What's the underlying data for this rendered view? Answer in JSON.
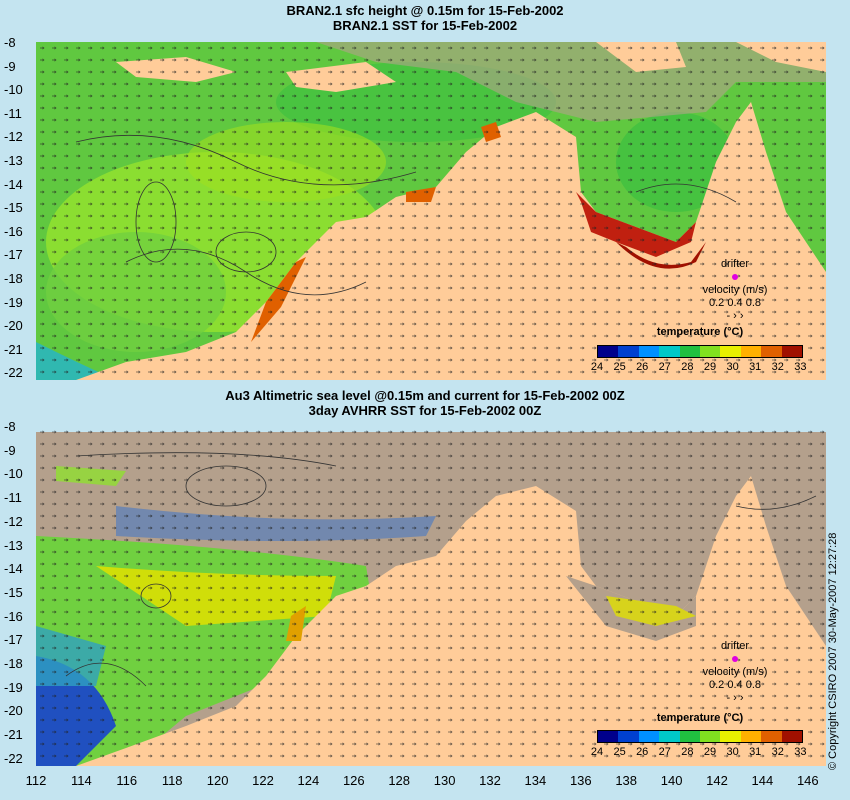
{
  "top_panel": {
    "title_line1": "BRAN2.1 sfc height @ 0.15m for 15-Feb-2002",
    "title_line2": "BRAN2.1 SST for 15-Feb-2002",
    "legend_title": "temperature (°C)",
    "legend_ticks": [
      "24",
      "25",
      "26",
      "27",
      "28",
      "29",
      "30",
      "31",
      "32",
      "33"
    ],
    "drifter_label": "drifter",
    "velocity_label": "velocity (m/s)",
    "velocity_values": "0.2 0.4 0.8"
  },
  "bottom_panel": {
    "title_line1": "Au3 Altimetric sea level  @0.15m and current for 15-Feb-2002 00Z",
    "title_line2": "3day AVHRR SST for 15-Feb-2002 00Z",
    "legend_title": "temperature (°C)",
    "legend_ticks": [
      "24",
      "25",
      "26",
      "27",
      "28",
      "29",
      "30",
      "31",
      "32",
      "33"
    ],
    "drifter_label": "drifter",
    "velocity_label": "velocity (m/s)",
    "velocity_values": "0.2 0.4 0.8"
  },
  "y_ticks": [
    "-8",
    "-9",
    "-10",
    "-11",
    "-12",
    "-13",
    "-14",
    "-15",
    "-16",
    "-17",
    "-18",
    "-19",
    "-20",
    "-21",
    "-22"
  ],
  "x_ticks": [
    "112",
    "114",
    "116",
    "118",
    "120",
    "122",
    "124",
    "126",
    "128",
    "130",
    "132",
    "134",
    "136",
    "138",
    "140",
    "142",
    "144",
    "146"
  ],
  "copyright": "© Copyright CSIRO 2007   30-May-2007 12:27:28",
  "colors": {
    "background": "#c4e4f0",
    "land": "#ffcc99",
    "no_data": "#b4a08c",
    "legend_scale": [
      "#00008b",
      "#0040d0",
      "#0090ff",
      "#00c8c8",
      "#20c040",
      "#80e020",
      "#e8f000",
      "#ffb000",
      "#e06000",
      "#a01000"
    ]
  },
  "map_extent": {
    "lon": [
      112,
      146
    ],
    "lat": [
      -22,
      -8
    ]
  }
}
